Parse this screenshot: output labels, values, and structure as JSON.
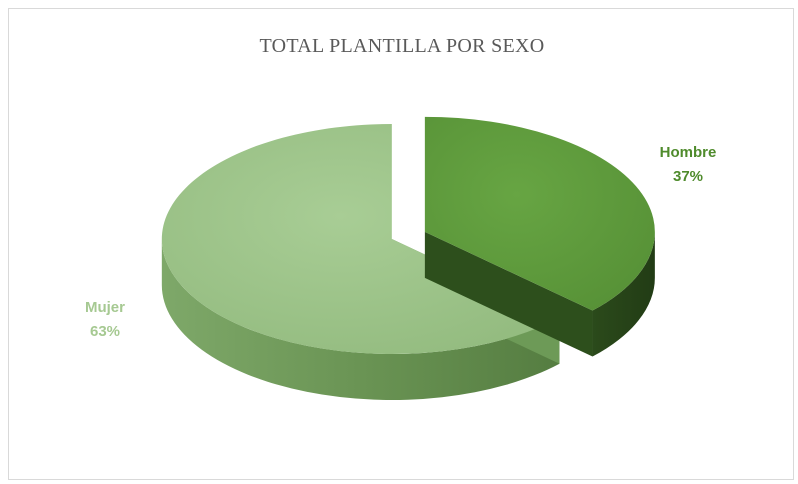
{
  "chart_data": {
    "type": "pie",
    "title": "TOTAL PLANTILLA POR SEXO",
    "slices": [
      {
        "name": "Hombre",
        "value": 37,
        "label": "37%",
        "color": "#5e9a3b",
        "side_color": "#2d4f1c",
        "label_color": "#4f8b2c"
      },
      {
        "name": "Mujer",
        "value": 63,
        "label": "63%",
        "color": "#9fc58a",
        "side_color": "#6d9a57",
        "label_color": "#a6c992"
      }
    ],
    "style": "3d-exploded"
  }
}
